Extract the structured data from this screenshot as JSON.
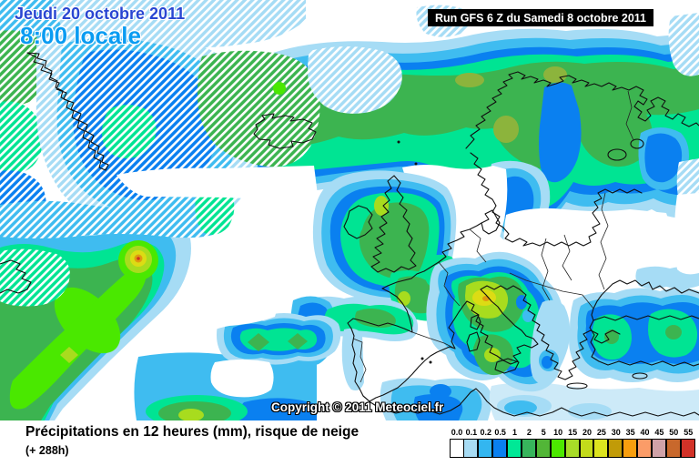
{
  "header": {
    "date": "Jeudi 20 octobre 2011",
    "time": "8:00 locale",
    "run": "Run GFS 6 Z du Samedi 8 octobre 2011"
  },
  "map": {
    "copyright": "Copyright © 2011 Meteociel.fr"
  },
  "footer": {
    "title": "Précipitations en 12 heures (mm), risque de neige",
    "lead_time": "(+ 288h)"
  },
  "legend": {
    "entries": [
      {
        "label": "0.0",
        "color": "#ffffff"
      },
      {
        "label": "0.1",
        "color": "#a8dcf4"
      },
      {
        "label": "0.2",
        "color": "#33b6f0"
      },
      {
        "label": "0.5",
        "color": "#0a80f0"
      },
      {
        "label": "1",
        "color": "#00e896"
      },
      {
        "label": "2",
        "color": "#37b55c"
      },
      {
        "label": "5",
        "color": "#52b637"
      },
      {
        "label": "10",
        "color": "#4ce800"
      },
      {
        "label": "15",
        "color": "#a8dc28"
      },
      {
        "label": "20",
        "color": "#c3db1b"
      },
      {
        "label": "25",
        "color": "#dde41f"
      },
      {
        "label": "30",
        "color": "#c19b08"
      },
      {
        "label": "35",
        "color": "#f89e0e"
      },
      {
        "label": "40",
        "color": "#fb9c68"
      },
      {
        "label": "45",
        "color": "#d0a2a8"
      },
      {
        "label": "50",
        "color": "#c8682c"
      },
      {
        "label": "55",
        "color": "#d23228"
      }
    ]
  },
  "palette": {
    "white": "#ffffff",
    "pale": "#cdeaf8",
    "light": "#a6dcf5",
    "cyan": "#3fbcf0",
    "blue": "#0a80f0",
    "teal": "#00e493",
    "green": "#3cb450",
    "olive": "#8cb43c",
    "bright": "#4ae800",
    "yellowgreen": "#a8dc1e",
    "yellow": "#dcdc14",
    "amber": "#e09a10",
    "red": "#d03020",
    "coast": "#101010",
    "border": "#222222"
  }
}
